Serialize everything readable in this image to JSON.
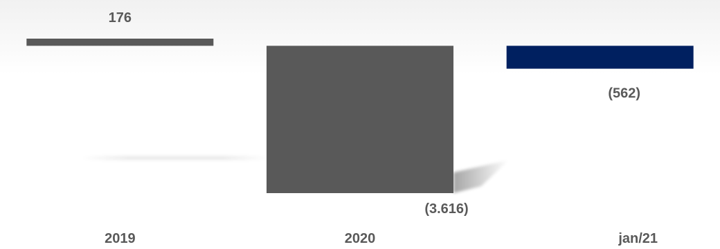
{
  "chart_data": {
    "type": "bar",
    "categories": [
      "2019",
      "2020",
      "jan/21"
    ],
    "values": [
      176,
      -3616,
      -562
    ],
    "data_labels": [
      "176",
      "(3.616)",
      "(562)"
    ],
    "colors": [
      "#595959",
      "#595959",
      "#002060"
    ],
    "label_color": "#595959",
    "title": "",
    "xlabel": "",
    "ylabel": "",
    "ylim": [
      -3616,
      176
    ],
    "grid": false,
    "legend": "none"
  }
}
